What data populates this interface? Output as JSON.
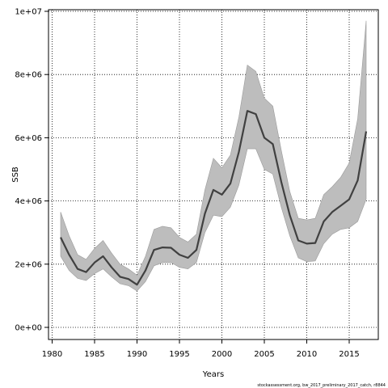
{
  "chart_data": {
    "type": "line",
    "xlabel": "Years",
    "ylabel": "SSB",
    "xlim": [
      1980,
      2017
    ],
    "ylim": [
      0,
      10000000
    ],
    "xticks": [
      1980,
      1985,
      1990,
      1995,
      2000,
      2005,
      2010,
      2015
    ],
    "yticks": [
      0,
      2000000,
      4000000,
      6000000,
      8000000,
      10000000
    ],
    "ytick_labels": [
      "0e+00",
      "2e+06",
      "4e+06",
      "6e+06",
      "8e+06",
      "1e+07"
    ],
    "grid": true,
    "x": [
      1981,
      1982,
      1983,
      1984,
      1985,
      1986,
      1987,
      1988,
      1989,
      1990,
      1991,
      1992,
      1993,
      1994,
      1995,
      1996,
      1997,
      1998,
      1999,
      2000,
      2001,
      2002,
      2003,
      2004,
      2005,
      2006,
      2007,
      2008,
      2009,
      2010,
      2011,
      2012,
      2013,
      2014,
      2015,
      2016,
      2017
    ],
    "series": [
      {
        "values": [
          2850000,
          2300000,
          1850000,
          1750000,
          2050000,
          2250000,
          1900000,
          1600000,
          1530000,
          1350000,
          1800000,
          2450000,
          2530000,
          2520000,
          2300000,
          2200000,
          2450000,
          3600000,
          4350000,
          4200000,
          4550000,
          5550000,
          6850000,
          6750000,
          6000000,
          5800000,
          4600000,
          3550000,
          2750000,
          2650000,
          2670000,
          3350000,
          3650000,
          3850000,
          4050000,
          4650000,
          6200000
        ],
        "lower": [
          2250000,
          1800000,
          1550000,
          1480000,
          1700000,
          1850000,
          1600000,
          1380000,
          1320000,
          1150000,
          1450000,
          1950000,
          2050000,
          2050000,
          1900000,
          1850000,
          2050000,
          3000000,
          3550000,
          3500000,
          3800000,
          4500000,
          5650000,
          5650000,
          5000000,
          4850000,
          3800000,
          2900000,
          2200000,
          2080000,
          2100000,
          2650000,
          2950000,
          3100000,
          3150000,
          3350000,
          4050000
        ],
        "upper": [
          3650000,
          2900000,
          2300000,
          2150000,
          2500000,
          2750000,
          2350000,
          2000000,
          1850000,
          1650000,
          2250000,
          3100000,
          3200000,
          3150000,
          2850000,
          2700000,
          2950000,
          4350000,
          5350000,
          5050000,
          5450000,
          6650000,
          8300000,
          8100000,
          7250000,
          7000000,
          5600000,
          4300000,
          3450000,
          3400000,
          3450000,
          4200000,
          4450000,
          4750000,
          5200000,
          6600000,
          9700000
        ]
      }
    ],
    "credit": "stockassessment.org, bw_2017_preliminary_2017_catch, r8844"
  }
}
